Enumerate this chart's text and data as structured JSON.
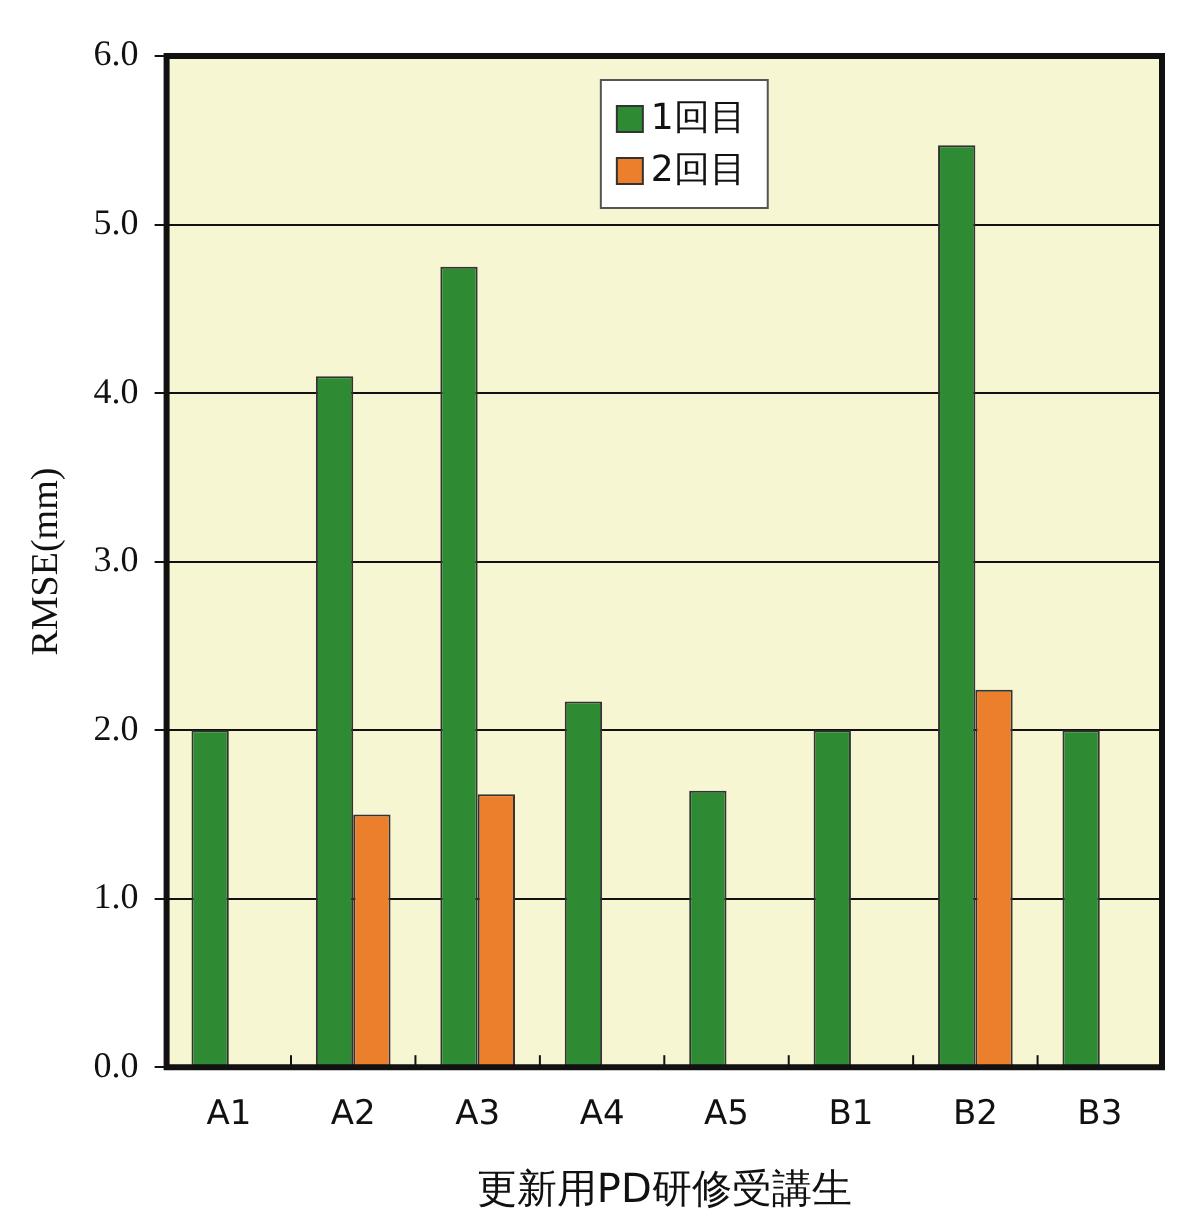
{
  "chart_data": {
    "type": "bar",
    "xlabel": "更新用PD研修受講生",
    "ylabel": "RMSE(mm)",
    "categories": [
      "A1",
      "A2",
      "A3",
      "A4",
      "A5",
      "B1",
      "B2",
      "B3"
    ],
    "series": [
      {
        "name": "1回目",
        "color": "#2e8b34",
        "values": [
          2.0,
          4.1,
          4.75,
          2.17,
          1.64,
          2.0,
          5.47,
          2.0
        ]
      },
      {
        "name": "2回目",
        "color": "#ec7f2c",
        "values": [
          null,
          1.5,
          1.62,
          null,
          null,
          null,
          2.24,
          null
        ]
      }
    ],
    "ylim": [
      0,
      6
    ],
    "yticks": [
      {
        "value": 0,
        "label": "0.0"
      },
      {
        "value": 1,
        "label": "1.0"
      },
      {
        "value": 2,
        "label": "2.0"
      },
      {
        "value": 3,
        "label": "3.0"
      },
      {
        "value": 4,
        "label": "4.0"
      },
      {
        "value": 5,
        "label": "5.0"
      },
      {
        "value": 6,
        "label": "6.0"
      }
    ],
    "grid": "y",
    "legend": "top"
  }
}
